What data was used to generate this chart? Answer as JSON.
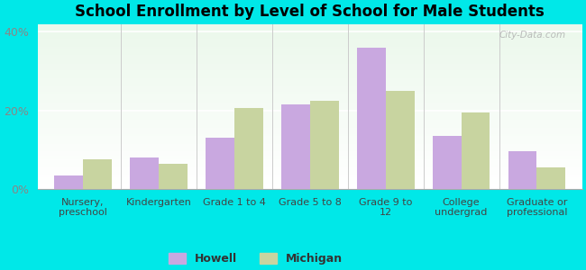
{
  "title": "School Enrollment by Level of School for Male Students",
  "categories": [
    "Nursery,\npreschool",
    "Kindergarten",
    "Grade 1 to 4",
    "Grade 5 to 8",
    "Grade 9 to\n12",
    "College\nundergrad",
    "Graduate or\nprofessional"
  ],
  "howell": [
    3.5,
    8.0,
    13.0,
    21.5,
    36.0,
    13.5,
    9.5
  ],
  "michigan": [
    7.5,
    6.5,
    20.5,
    22.5,
    25.0,
    19.5,
    5.5
  ],
  "howell_color": "#c9a8e0",
  "michigan_color": "#c8d4a0",
  "background_color": "#00e8e8",
  "ylim": [
    0,
    42
  ],
  "yticks": [
    0,
    20,
    40
  ],
  "ytick_labels": [
    "0%",
    "20%",
    "40%"
  ],
  "bar_width": 0.38,
  "legend_labels": [
    "Howell",
    "Michigan"
  ],
  "watermark": "City-Data.com"
}
